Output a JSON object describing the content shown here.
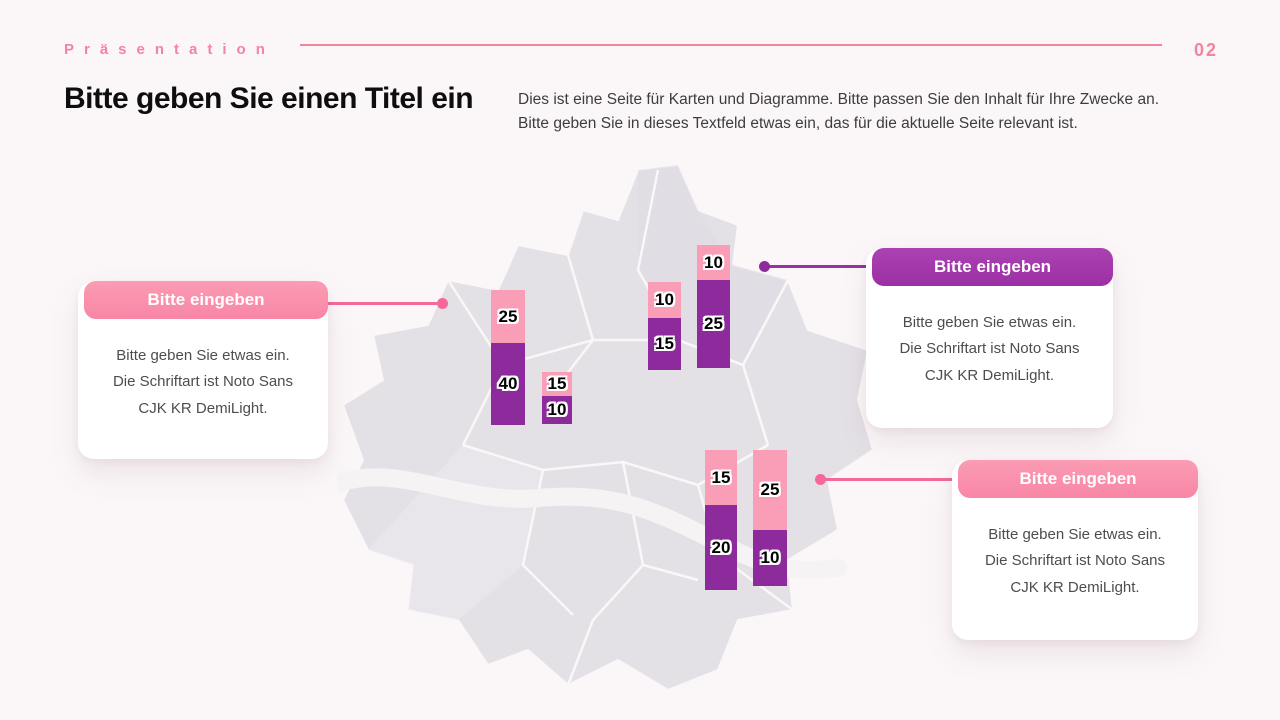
{
  "header": {
    "eyebrow": "Präsentation",
    "page_number": "02"
  },
  "title_block": {
    "title": "Bitte geben Sie einen Titel ein",
    "description_line1": "Dies ist eine Seite für Karten und Diagramme. Bitte passen Sie den Inhalt für Ihre Zwecke an.",
    "description_line2": "Bitte geben Sie in dieses Textfeld etwas ein, das für die aktuelle Seite relevant ist."
  },
  "callouts": [
    {
      "accent": "pink",
      "header": "Bitte eingeben",
      "body_lines": [
        "Bitte geben Sie etwas ein.",
        "Die Schriftart ist Noto Sans",
        "CJK KR DemiLight."
      ]
    },
    {
      "accent": "purple",
      "header": "Bitte eingeben",
      "body_lines": [
        "Bitte geben Sie etwas ein.",
        "Die Schriftart ist Noto Sans",
        "CJK KR DemiLight."
      ]
    },
    {
      "accent": "pink",
      "header": "Bitte eingeben",
      "body_lines": [
        "Bitte geben Sie etwas ein.",
        "Die Schriftart ist Noto Sans",
        "CJK KR DemiLight."
      ]
    }
  ],
  "chart_data": {
    "type": "bar",
    "subtype": "stacked-bars-on-map",
    "title": "Bitte geben Sie einen Titel ein",
    "series": [
      "pink",
      "purple"
    ],
    "bars": [
      {
        "pink": 25,
        "purple": 40
      },
      {
        "pink": 15,
        "purple": 10
      },
      {
        "pink": 10,
        "purple": 15
      },
      {
        "pink": 10,
        "purple": 25
      },
      {
        "pink": 15,
        "purple": 20
      },
      {
        "pink": 25,
        "purple": 10
      }
    ],
    "legend": "none",
    "background_figure": "city district map (Seoul-style), light gray with white district borders"
  },
  "colors": {
    "background": "#fbf7f8",
    "accent_pink": "#f2849f",
    "accent_purple": "#9c2fa5",
    "bar_pink": "#fa9db6",
    "bar_purple": "#8e2b9c",
    "card_pink_header": "#f886a5",
    "card_purple_header": "#9c2fa5",
    "connector_pink": "#f4699a",
    "map_fill": "#e4e1e6"
  }
}
